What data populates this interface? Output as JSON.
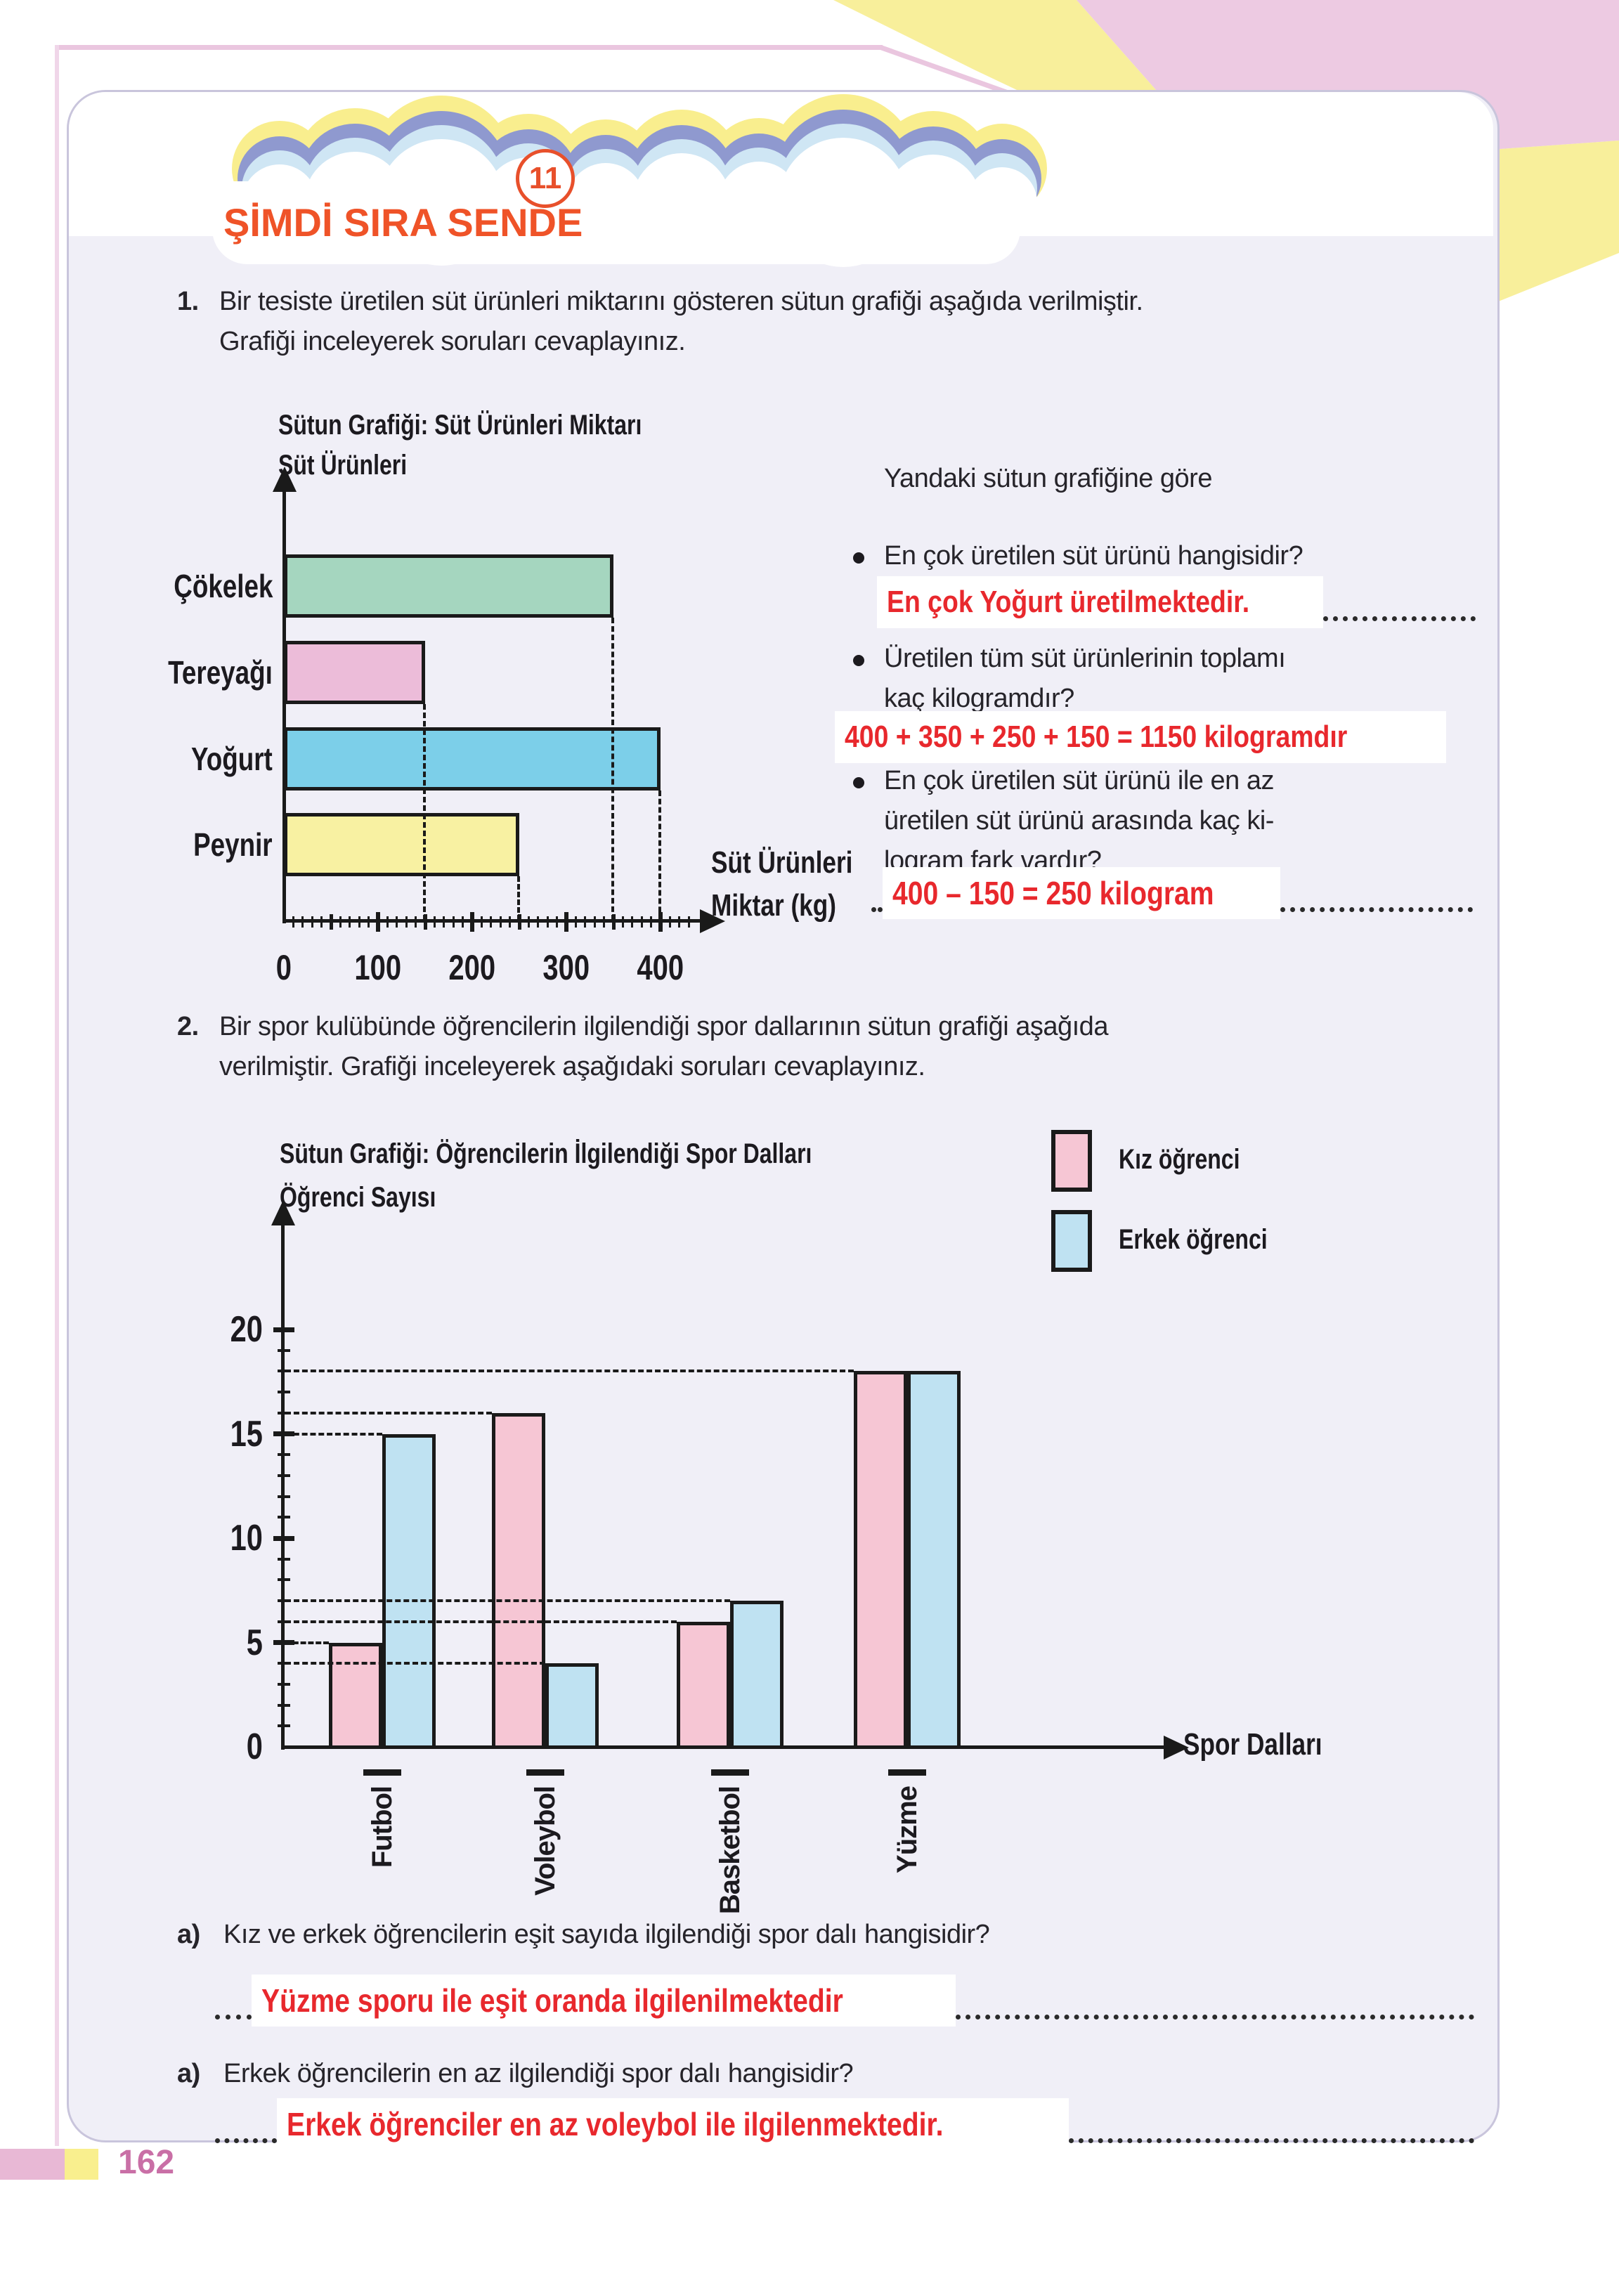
{
  "header": {
    "badge": "11",
    "title": "ŞİMDİ SIRA SENDE"
  },
  "q1": {
    "number": "1.",
    "lines": [
      "Bir tesiste üretilen süt ürünleri miktarını gösteren sütun grafiği aşağıda verilmiştir.",
      "Grafiği inceleyerek soruları cevaplayınız."
    ],
    "side_heading": "Yandaki sütun grafiğine göre",
    "bullets": [
      {
        "lines": [
          "En çok üretilen süt ürünü hangisidir?"
        ],
        "answer": "En çok Yoğurt üretilmektedir."
      },
      {
        "lines": [
          "Üretilen tüm süt ürünlerinin toplamı",
          "kaç kilogramdır?"
        ],
        "answer": "400 + 350 + 250 + 150 = 1150 kilogramdır"
      },
      {
        "lines": [
          "En çok üretilen süt ürünü ile en az",
          "üretilen süt ürünü arasında kaç ki-",
          "logram fark vardır?"
        ],
        "answer": "400 – 150 = 250 kilogram"
      }
    ]
  },
  "q2": {
    "number": "2.",
    "lines": [
      "Bir spor kulübünde öğrencilerin ilgilendiği spor dallarının sütun grafiği aşağıda",
      "verilmiştir. Grafiği inceleyerek aşağıdaki soruları cevaplayınız."
    ]
  },
  "qa": [
    {
      "label": "a)",
      "question": "Kız ve erkek öğrencilerin eşit sayıda ilgilendiği spor dalı hangisidir?",
      "answer": "Yüzme sporu ile eşit oranda ilgilenilmektedir"
    },
    {
      "label": "a)",
      "question": "Erkek öğrencilerin en az ilgilendiği spor dalı hangisidir?",
      "answer": "Erkek öğrenciler en az voleybol ile ilgilenmektedir."
    }
  ],
  "footer": {
    "page_number": "162"
  },
  "colors": {
    "accent_orange": "#ef5328",
    "answer_red": "#e8282d",
    "panel_bg": "#f0eff7",
    "girl_pink": "#f6c6d4",
    "boy_blue": "#bfe2f2"
  },
  "chart_data": [
    {
      "type": "bar",
      "orientation": "horizontal",
      "title": "Sütun Grafiği: Süt Ürünleri Miktarı",
      "ylabel": "Süt Ürünleri",
      "xlabel_lines": [
        "Süt Ürünleri",
        "Miktar (kg)"
      ],
      "categories": [
        "Çökelek",
        "Tereyağı",
        "Yoğurt",
        "Peynir"
      ],
      "values": [
        350,
        150,
        400,
        250
      ],
      "bar_colors": [
        "#a5d6bf",
        "#ecbcd9",
        "#7ccfe9",
        "#f8f1a2"
      ],
      "xticks": [
        0,
        100,
        200,
        300,
        400
      ],
      "xlim": [
        0,
        440
      ],
      "minor_tick_step": 10,
      "guides": "dashed-line-from-bar-end-to-axis"
    },
    {
      "type": "bar",
      "orientation": "vertical",
      "title": "Sütun Grafiği: Öğrencilerin İlgilendiği Spor Dalları",
      "ylabel": "Öğrenci Sayısı",
      "xlabel": "Spor Dalları",
      "categories": [
        "Futbol",
        "Voleybol",
        "Basketbol",
        "Yüzme"
      ],
      "series": [
        {
          "name": "Kız öğrenci",
          "color": "#f6c6d4",
          "values": [
            5,
            16,
            6,
            18
          ]
        },
        {
          "name": "Erkek öğrenci",
          "color": "#bfe2f2",
          "values": [
            15,
            4,
            7,
            18
          ]
        }
      ],
      "yticks": [
        0,
        5,
        10,
        15,
        20
      ],
      "ylim": [
        0,
        21
      ],
      "minor_tick_step": 1,
      "legend_position": "top-right",
      "guides": "dashed-line-from-axis-to-bar-top"
    }
  ]
}
